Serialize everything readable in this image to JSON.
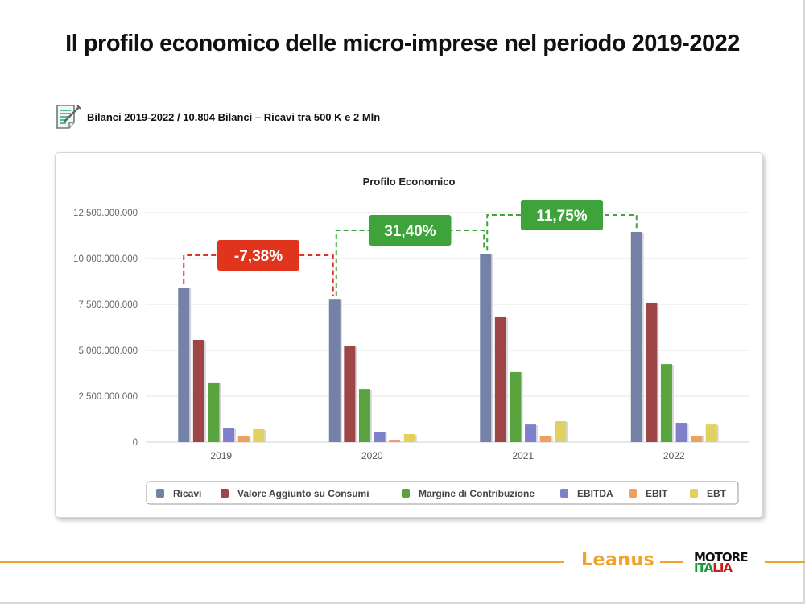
{
  "page": {
    "title": "Il profilo economico delle micro-imprese nel periodo 2019-2022",
    "subtitle": "Bilanci 2019-2022 / 10.804 Bilanci – Ricavi tra 500 K e 2 Mln",
    "subtitle_icon": "document-edit-icon"
  },
  "logos": {
    "leanus": "Leanus",
    "motore_line1": "MOTORE",
    "motore_it": "ITA",
    "motore_lia": "LIA"
  },
  "chart_data": {
    "type": "bar",
    "title": "Profilo Economico",
    "xlabel": "",
    "ylabel": "",
    "categories": [
      "2019",
      "2020",
      "2021",
      "2022"
    ],
    "ylim": [
      0,
      12500000000
    ],
    "yticks": [
      0,
      2500000000,
      5000000000,
      7500000000,
      10000000000,
      12500000000
    ],
    "ytick_labels": [
      "0",
      "2.500.000.000",
      "5.000.000.000",
      "7.500.000.000",
      "10.000.000.000",
      "12.500.000.000"
    ],
    "grid": true,
    "legend_position": "bottom",
    "series": [
      {
        "name": "Ricavi",
        "color": "#7482a8",
        "values": [
          8420000000,
          7800000000,
          10250000000,
          11450000000
        ]
      },
      {
        "name": "Valore Aggiunto su Consumi",
        "color": "#9e4646",
        "values": [
          5570000000,
          5220000000,
          6800000000,
          7590000000
        ]
      },
      {
        "name": "Margine di Contribuzione",
        "color": "#5aa43f",
        "values": [
          3250000000,
          2890000000,
          3820000000,
          4250000000
        ]
      },
      {
        "name": "EBITDA",
        "color": "#7f7fcc",
        "values": [
          750000000,
          570000000,
          960000000,
          1050000000
        ]
      },
      {
        "name": "EBIT",
        "color": "#eea15f",
        "values": [
          310000000,
          130000000,
          310000000,
          350000000
        ]
      },
      {
        "name": "EBT",
        "color": "#e1d160",
        "values": [
          700000000,
          440000000,
          1140000000,
          960000000
        ]
      }
    ],
    "annotations": [
      {
        "from": "2019",
        "to": "2020",
        "label": "-7,38%",
        "color": "#e0341c",
        "line_color": "#e03020"
      },
      {
        "from": "2020",
        "to": "2021",
        "label": "31,40%",
        "color": "#3ea33a",
        "line_color": "#3ea33a"
      },
      {
        "from": "2021",
        "to": "2022",
        "label": "11,75%",
        "color": "#3ea33a",
        "line_color": "#3ea33a"
      }
    ]
  }
}
